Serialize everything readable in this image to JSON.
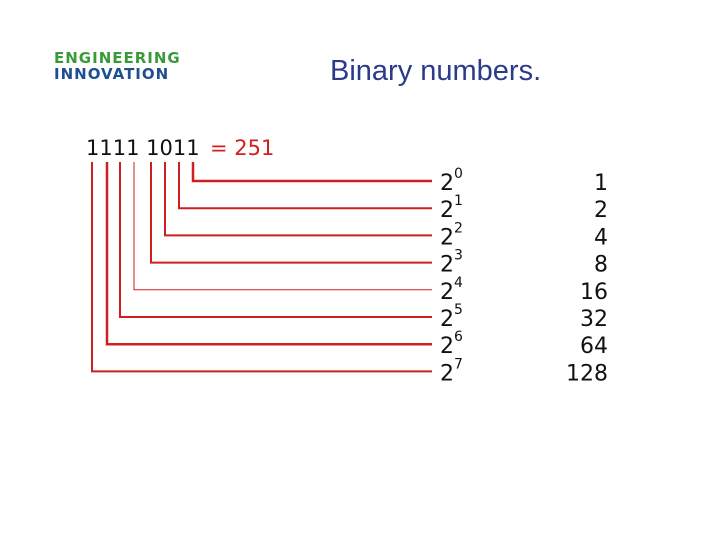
{
  "logo": {
    "line1": "ENGINEERING",
    "line2": "INNOVATION"
  },
  "title": "Binary numbers.",
  "binary": "1111 1011",
  "result": "= 251",
  "powers": [
    {
      "base": "2",
      "exponent": "0",
      "value": "1"
    },
    {
      "base": "2",
      "exponent": "1",
      "value": "2"
    },
    {
      "base": "2",
      "exponent": "2",
      "value": "4"
    },
    {
      "base": "2",
      "exponent": "3",
      "value": "8"
    },
    {
      "base": "2",
      "exponent": "4",
      "value": "16"
    },
    {
      "base": "2",
      "exponent": "5",
      "value": "32"
    },
    {
      "base": "2",
      "exponent": "6",
      "value": "64"
    },
    {
      "base": "2",
      "exponent": "7",
      "value": "128"
    }
  ]
}
